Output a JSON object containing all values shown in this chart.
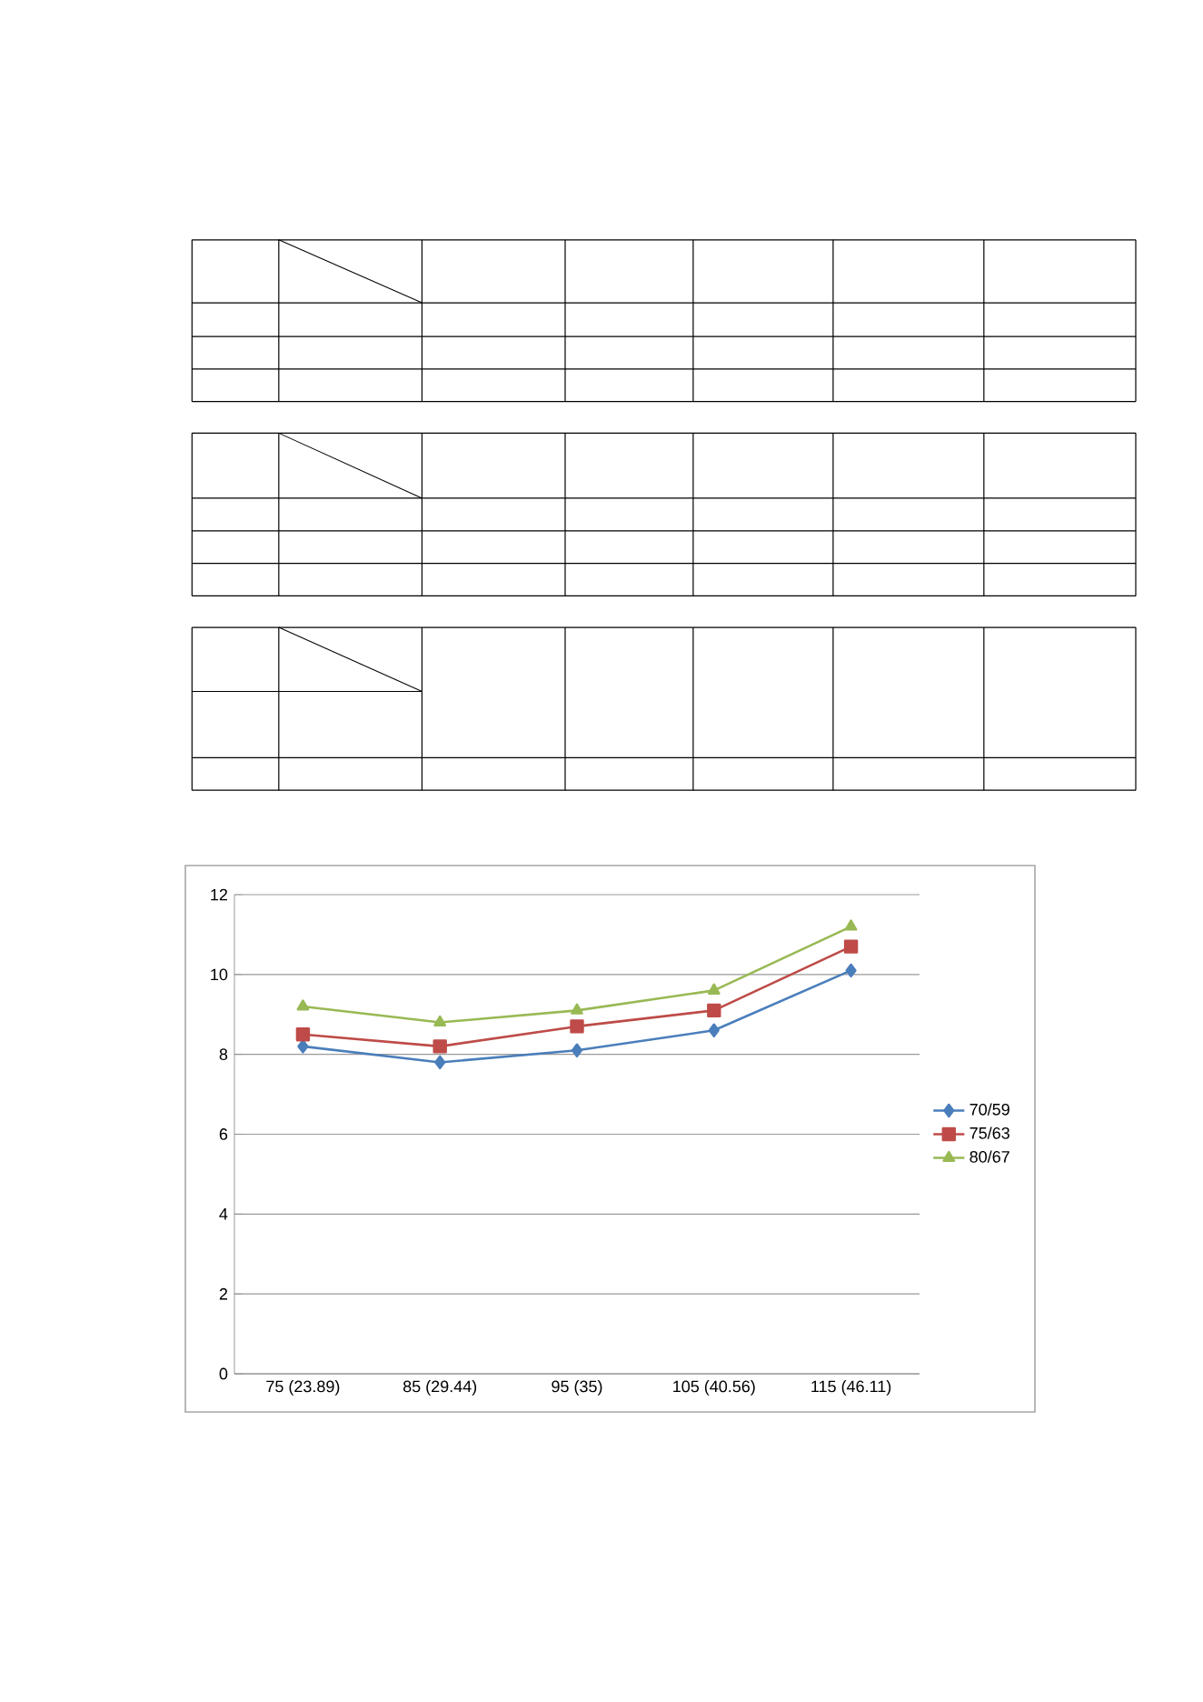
{
  "chart_data": {
    "type": "line",
    "categories": [
      "75 (23.89)",
      "85 (29.44)",
      "95 (35)",
      "105 (40.56)",
      "115 (46.11)"
    ],
    "series": [
      {
        "name": "70/59",
        "color": "#4a7ebb",
        "marker": "diamond",
        "values": [
          8.2,
          7.8,
          8.1,
          8.6,
          10.1
        ]
      },
      {
        "name": "75/63",
        "color": "#be4b48",
        "marker": "square",
        "values": [
          8.5,
          8.2,
          8.7,
          9.1,
          10.7
        ]
      },
      {
        "name": "80/67",
        "color": "#98b954",
        "marker": "triangle",
        "values": [
          9.2,
          8.8,
          9.1,
          9.6,
          11.2
        ]
      }
    ],
    "ylim": [
      0,
      12
    ],
    "yticks": [
      0,
      2,
      4,
      6,
      8,
      10,
      12
    ],
    "grid": "y",
    "legend": "right"
  }
}
